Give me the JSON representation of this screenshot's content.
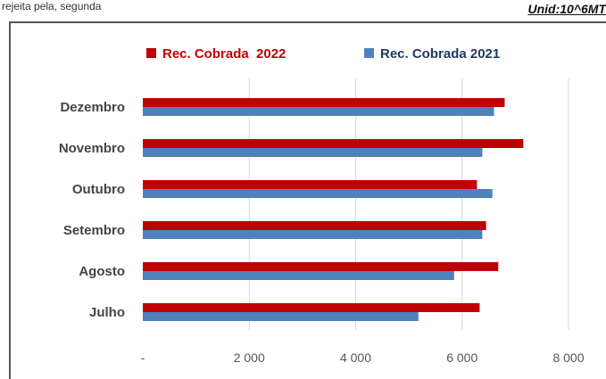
{
  "caption": "rejeita pela, segunda",
  "unit_label": "Unid:10^6MT",
  "colors": {
    "series_2022": "#c00000",
    "series_2021": "#4f81bd",
    "grid": "#d9d9d9"
  },
  "chart_data": {
    "type": "bar",
    "orientation": "horizontal",
    "categories": [
      "Dezembro",
      "Novembro",
      "Outubro",
      "Setembro",
      "Agosto",
      "Julho"
    ],
    "series": [
      {
        "name": "Rec. Cobrada  2022",
        "values": [
          6800,
          7150,
          6280,
          6450,
          6680,
          6330
        ]
      },
      {
        "name": "Rec. Cobrada 2021",
        "values": [
          6600,
          6380,
          6570,
          6380,
          5850,
          5180
        ]
      }
    ],
    "xlim": [
      0,
      8000
    ],
    "ticks": [
      0,
      2000,
      4000,
      6000,
      8000
    ],
    "tick_labels": [
      "-",
      "2 000",
      "4 000",
      "6 000",
      "8 000"
    ],
    "grid": true,
    "legend_position": "top"
  }
}
